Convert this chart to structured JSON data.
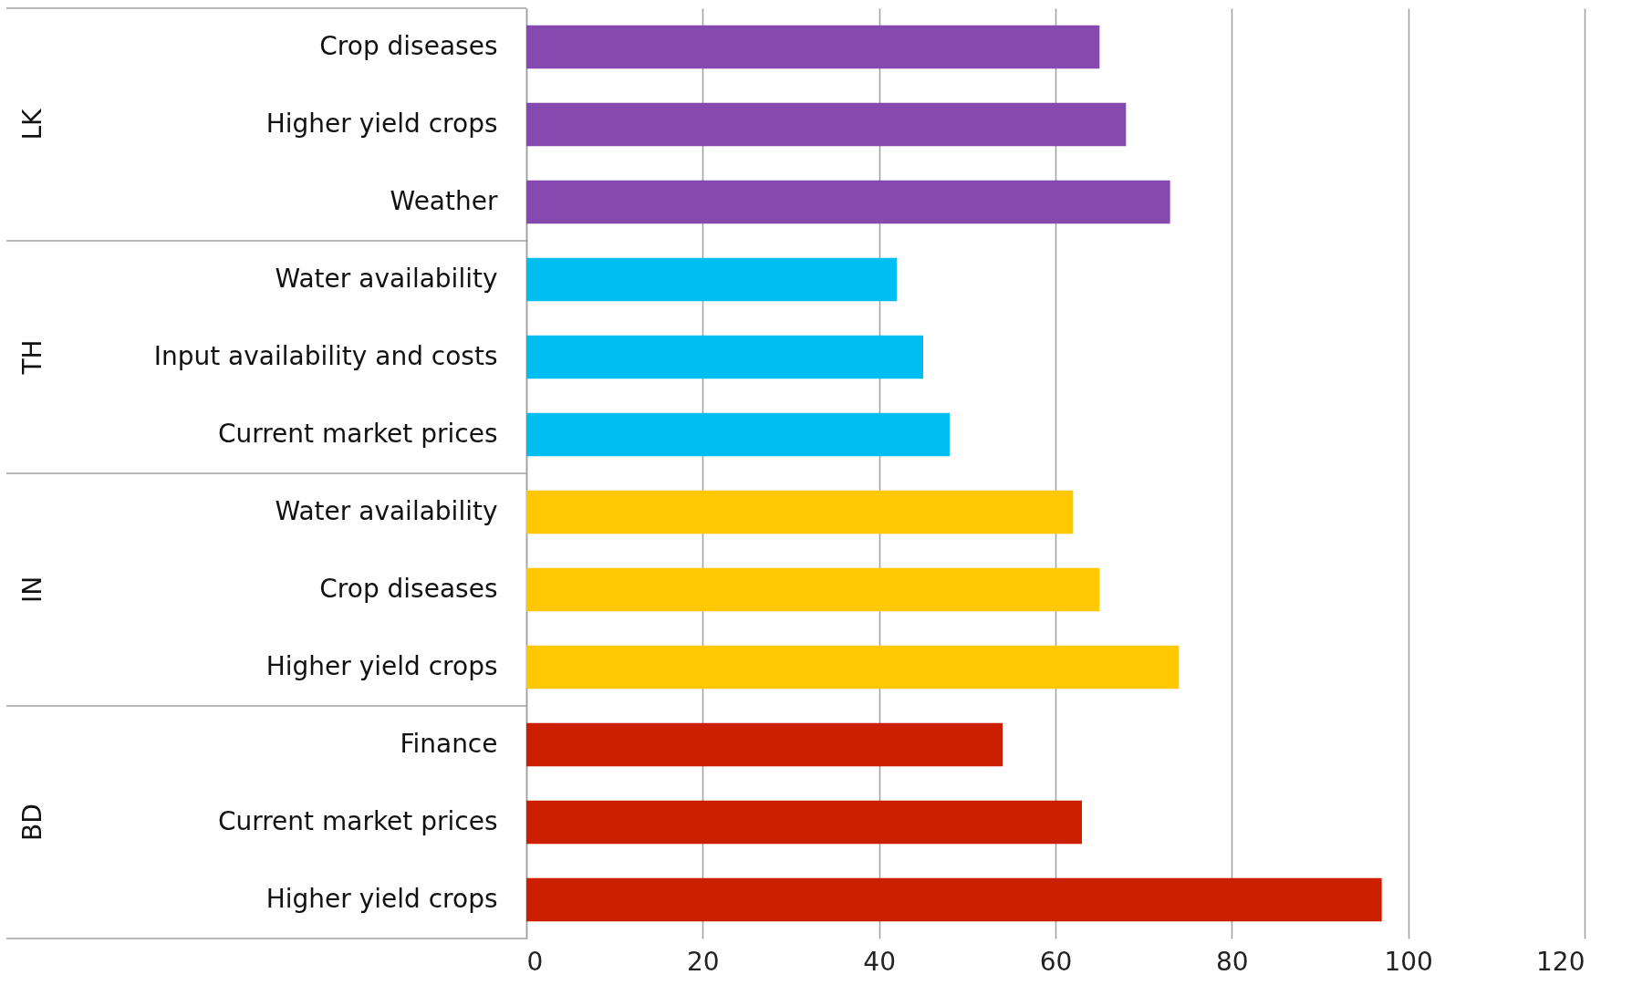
{
  "chart_data": {
    "type": "bar",
    "orientation": "horizontal",
    "categories": [
      "Crop diseases",
      "Higher yield crops",
      "Weather",
      "Water availability",
      "Input availability and costs",
      "Current market prices",
      "Water availability",
      "Crop diseases",
      "Higher yield crops",
      "Finance",
      "Current market prices",
      "Higher yield crops"
    ],
    "series": [
      {
        "color": "#8549b0",
        "values": [
          65,
          68,
          73,
          null,
          null,
          null,
          null,
          null,
          null,
          null,
          null,
          null
        ]
      },
      {
        "color": "#00bff0",
        "values": [
          null,
          null,
          null,
          42,
          45,
          48,
          null,
          null,
          null,
          null,
          null,
          null
        ]
      },
      {
        "color": "#ffc800",
        "values": [
          null,
          null,
          null,
          null,
          null,
          null,
          62,
          65,
          74,
          null,
          null,
          null
        ]
      },
      {
        "color": "#cc1f00",
        "values": [
          null,
          null,
          null,
          null,
          null,
          null,
          null,
          null,
          null,
          54,
          63,
          97
        ]
      }
    ],
    "annotations": [
      "LK",
      "TH",
      "IN",
      "BD"
    ],
    "xlim": [
      0,
      120
    ],
    "xticks": [
      0,
      20,
      40,
      60,
      80,
      100,
      120
    ],
    "grid": "x",
    "legend": false
  }
}
